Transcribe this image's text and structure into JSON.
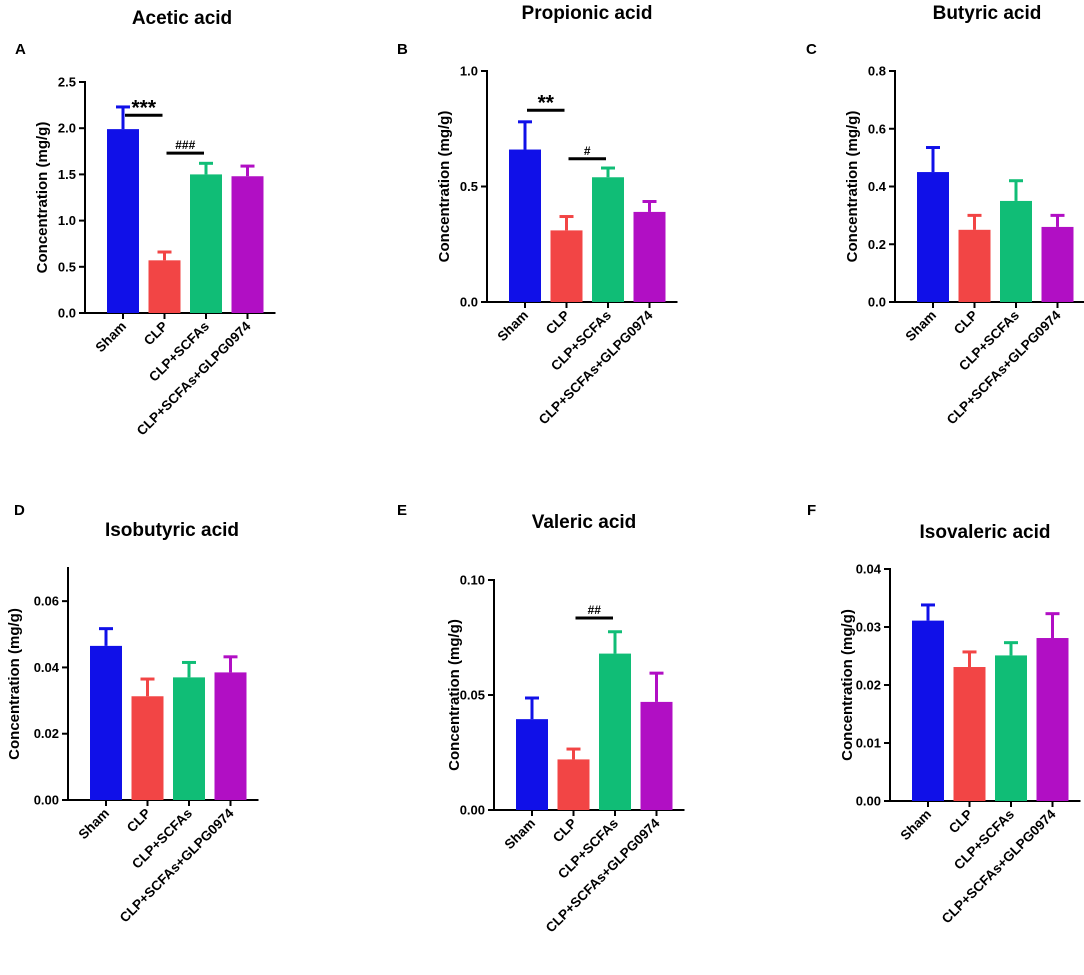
{
  "colors": {
    "Sham": "#1010e8",
    "CLP": "#f24545",
    "CLP+SCFAs": "#10bd76",
    "CLP+SCFAs+GLPG0974": "#b10fc4",
    "axis": "#000000"
  },
  "chart_data": [
    {
      "panel": "A",
      "type": "bar",
      "title": "Acetic acid",
      "ylabel": "Concentration (mg/g)",
      "categories": [
        "Sham",
        "CLP",
        "CLP+SCFAs",
        "CLP+SCFAs+GLPG0974"
      ],
      "values": [
        1.99,
        0.57,
        1.5,
        1.48
      ],
      "errors": [
        0.24,
        0.09,
        0.12,
        0.11
      ],
      "ylim": [
        0,
        2.5
      ],
      "yticks": [
        "0.0",
        "0.5",
        "1.0",
        "1.5",
        "2.0",
        "2.5"
      ],
      "annotations": [
        {
          "text": "***",
          "from": 0,
          "to": 1,
          "y": 2.14
        },
        {
          "text": "###",
          "from": 1,
          "to": 2,
          "y": 1.73
        }
      ]
    },
    {
      "panel": "B",
      "type": "bar",
      "title": "Propionic acid",
      "ylabel": "Concentration (mg/g)",
      "categories": [
        "Sham",
        "CLP",
        "CLP+SCFAs",
        "CLP+SCFAs+GLPG0974"
      ],
      "values": [
        0.66,
        0.31,
        0.54,
        0.39
      ],
      "errors": [
        0.12,
        0.06,
        0.04,
        0.045
      ],
      "ylim": [
        0,
        1.0
      ],
      "yticks": [
        "0.0",
        "0.5",
        "1.0"
      ],
      "annotations": [
        {
          "text": "**",
          "from": 0,
          "to": 1,
          "y": 0.83
        },
        {
          "text": "#",
          "from": 1,
          "to": 2,
          "y": 0.62
        }
      ]
    },
    {
      "panel": "C",
      "type": "bar",
      "title": "Butyric acid",
      "ylabel": "Concentration (mg/g)",
      "categories": [
        "Sham",
        "CLP",
        "CLP+SCFAs",
        "CLP+SCFAs+GLPG0974"
      ],
      "values": [
        0.45,
        0.25,
        0.35,
        0.26
      ],
      "errors": [
        0.085,
        0.05,
        0.07,
        0.04
      ],
      "ylim": [
        0,
        0.8
      ],
      "yticks": [
        "0.0",
        "0.2",
        "0.4",
        "0.6",
        "0.8"
      ],
      "annotations": []
    },
    {
      "panel": "D",
      "type": "bar",
      "title": "Isobutyric acid",
      "ylabel": "Concentration (mg/g)",
      "categories": [
        "Sham",
        "CLP",
        "CLP+SCFAs",
        "CLP+SCFAs+GLPG0974"
      ],
      "values": [
        0.0465,
        0.0313,
        0.037,
        0.0385
      ],
      "errors": [
        0.0052,
        0.0052,
        0.0045,
        0.0047
      ],
      "ylim": [
        0,
        0.07
      ],
      "yticks": [
        "0.00",
        "0.02",
        "0.04",
        "0.06"
      ],
      "annotations": []
    },
    {
      "panel": "E",
      "type": "bar",
      "title": "Valeric acid",
      "ylabel": "Concentration (mg/g)",
      "categories": [
        "Sham",
        "CLP",
        "CLP+SCFAs",
        "CLP+SCFAs+GLPG0974"
      ],
      "values": [
        0.0395,
        0.022,
        0.068,
        0.047
      ],
      "errors": [
        0.0092,
        0.0045,
        0.0095,
        0.0125
      ],
      "ylim": [
        0,
        0.1
      ],
      "yticks": [
        "0.00",
        "0.05",
        "0.10"
      ],
      "annotations": [
        {
          "text": "##",
          "from": 1,
          "to": 2,
          "y": 0.0835
        }
      ]
    },
    {
      "panel": "F",
      "type": "bar",
      "title": "Isovaleric acid",
      "ylabel": "Concentration (mg/g)",
      "categories": [
        "Sham",
        "CLP",
        "CLP+SCFAs",
        "CLP+SCFAs+GLPG0974"
      ],
      "values": [
        0.0311,
        0.0231,
        0.0251,
        0.0281
      ],
      "errors": [
        0.0027,
        0.0026,
        0.0022,
        0.0042
      ],
      "ylim": [
        0,
        0.04
      ],
      "yticks": [
        "0.00",
        "0.01",
        "0.02",
        "0.03",
        "0.04"
      ],
      "annotations": []
    }
  ]
}
